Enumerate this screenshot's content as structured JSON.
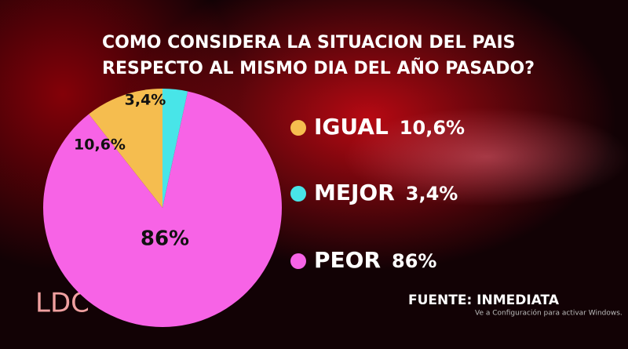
{
  "chart_data": {
    "type": "pie",
    "title": [
      "COMO CONSIDERA LA SITUACION DEL PAIS",
      "RESPECTO AL MISMO DIA DEL AÑO PASADO?"
    ],
    "categories": [
      "IGUAL",
      "MEJOR",
      "PEOR"
    ],
    "values": [
      10.6,
      3.4,
      86
    ],
    "value_labels": [
      "10,6%",
      "3,4%",
      "86%"
    ],
    "colors": [
      "#f5bd4f",
      "#48e5e8",
      "#f763e6"
    ],
    "source": "FUENTE: INMEDIATA",
    "logo": "LDC",
    "watermark": "Ve a Configuración para activar Windows."
  }
}
